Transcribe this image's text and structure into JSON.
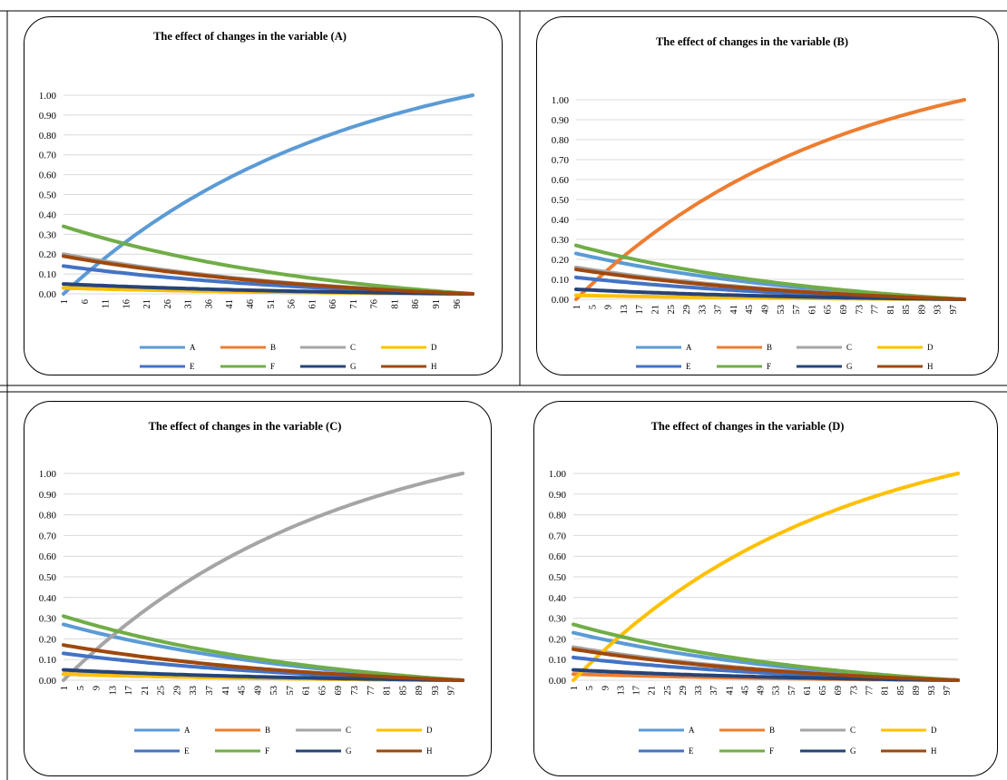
{
  "colors": {
    "A": "#5B9BD5",
    "B": "#ED7D31",
    "C": "#A5A5A5",
    "D": "#FFC000",
    "E": "#4472C4",
    "F": "#70AD47",
    "G": "#264478",
    "H": "#9E480E",
    "grid": "#d9d9d9"
  },
  "legend": {
    "row1": [
      "A",
      "B",
      "C",
      "D"
    ],
    "row2": [
      "E",
      "F",
      "G",
      "H"
    ]
  },
  "chart_data": [
    {
      "type": "line",
      "title": "The effect of changes  in the variable (A)",
      "y_ticks": [
        "0.00",
        "0.10",
        "0.20",
        "0.30",
        "0.40",
        "0.50",
        "0.60",
        "0.70",
        "0.80",
        "0.90",
        "1.00"
      ],
      "ylim": [
        0,
        1
      ],
      "x_ticks": [
        1,
        6,
        11,
        16,
        21,
        26,
        31,
        36,
        41,
        46,
        51,
        56,
        61,
        66,
        71,
        76,
        81,
        86,
        91,
        96
      ],
      "xlim": [
        1,
        100
      ],
      "grid": true,
      "legend_position": "bottom",
      "series": [
        {
          "name": "A",
          "start": 0.0,
          "end": 1.0
        },
        {
          "name": "B",
          "start": 0.03,
          "end": 0.0
        },
        {
          "name": "C",
          "start": 0.2,
          "end": 0.0
        },
        {
          "name": "D",
          "start": 0.03,
          "end": 0.0
        },
        {
          "name": "E",
          "start": 0.14,
          "end": 0.0
        },
        {
          "name": "F",
          "start": 0.34,
          "end": 0.0
        },
        {
          "name": "G",
          "start": 0.05,
          "end": 0.0
        },
        {
          "name": "H",
          "start": 0.19,
          "end": 0.0
        }
      ]
    },
    {
      "type": "line",
      "title": "The effect of changes in the variable (B)",
      "y_ticks": [
        "0.00",
        "0.10",
        "0.20",
        "0.30",
        "0.40",
        "0.50",
        "0.60",
        "0.70",
        "0.80",
        "0.90",
        "1.00"
      ],
      "ylim": [
        0,
        1
      ],
      "x_ticks": [
        1,
        5,
        9,
        13,
        17,
        21,
        25,
        29,
        33,
        37,
        41,
        45,
        49,
        53,
        57,
        61,
        65,
        69,
        73,
        77,
        81,
        85,
        89,
        93,
        97
      ],
      "xlim": [
        1,
        100
      ],
      "grid": true,
      "legend_position": "bottom",
      "series": [
        {
          "name": "A",
          "start": 0.23,
          "end": 0.0
        },
        {
          "name": "B",
          "start": 0.0,
          "end": 1.0
        },
        {
          "name": "C",
          "start": 0.16,
          "end": 0.0
        },
        {
          "name": "D",
          "start": 0.02,
          "end": 0.0
        },
        {
          "name": "E",
          "start": 0.11,
          "end": 0.0
        },
        {
          "name": "F",
          "start": 0.27,
          "end": 0.0
        },
        {
          "name": "G",
          "start": 0.05,
          "end": 0.0
        },
        {
          "name": "H",
          "start": 0.15,
          "end": 0.0
        }
      ]
    },
    {
      "type": "line",
      "title": "The effect of changes in the variable (C)",
      "y_ticks": [
        "0.00",
        "0.10",
        "0.20",
        "0.30",
        "0.40",
        "0.50",
        "0.60",
        "0.70",
        "0.80",
        "0.90",
        "1.00"
      ],
      "ylim": [
        0,
        1
      ],
      "x_ticks": [
        1,
        5,
        9,
        13,
        17,
        21,
        25,
        29,
        33,
        37,
        41,
        45,
        49,
        53,
        57,
        61,
        65,
        69,
        73,
        77,
        81,
        85,
        89,
        93,
        97
      ],
      "xlim": [
        1,
        100
      ],
      "grid": true,
      "legend_position": "bottom",
      "series": [
        {
          "name": "A",
          "start": 0.27,
          "end": 0.0
        },
        {
          "name": "B",
          "start": 0.03,
          "end": 0.0
        },
        {
          "name": "C",
          "start": 0.0,
          "end": 1.0
        },
        {
          "name": "D",
          "start": 0.03,
          "end": 0.0
        },
        {
          "name": "E",
          "start": 0.13,
          "end": 0.0
        },
        {
          "name": "F",
          "start": 0.31,
          "end": 0.0
        },
        {
          "name": "G",
          "start": 0.05,
          "end": 0.0
        },
        {
          "name": "H",
          "start": 0.17,
          "end": 0.0
        }
      ]
    },
    {
      "type": "line",
      "title": "The effect of changes in the variable (D)",
      "y_ticks": [
        "0.00",
        "0.10",
        "0.20",
        "0.30",
        "0.40",
        "0.50",
        "0.60",
        "0.70",
        "0.80",
        "0.90",
        "1.00"
      ],
      "ylim": [
        0,
        1
      ],
      "x_ticks": [
        1,
        5,
        9,
        13,
        17,
        21,
        25,
        29,
        33,
        37,
        41,
        45,
        49,
        53,
        57,
        61,
        65,
        69,
        73,
        77,
        81,
        85,
        89,
        93,
        97
      ],
      "xlim": [
        1,
        100
      ],
      "grid": true,
      "legend_position": "bottom",
      "series": [
        {
          "name": "A",
          "start": 0.23,
          "end": 0.0
        },
        {
          "name": "B",
          "start": 0.03,
          "end": 0.0
        },
        {
          "name": "C",
          "start": 0.16,
          "end": 0.0
        },
        {
          "name": "D",
          "start": 0.0,
          "end": 1.0
        },
        {
          "name": "E",
          "start": 0.11,
          "end": 0.0
        },
        {
          "name": "F",
          "start": 0.27,
          "end": 0.0
        },
        {
          "name": "G",
          "start": 0.05,
          "end": 0.0
        },
        {
          "name": "H",
          "start": 0.15,
          "end": 0.0
        }
      ]
    }
  ]
}
